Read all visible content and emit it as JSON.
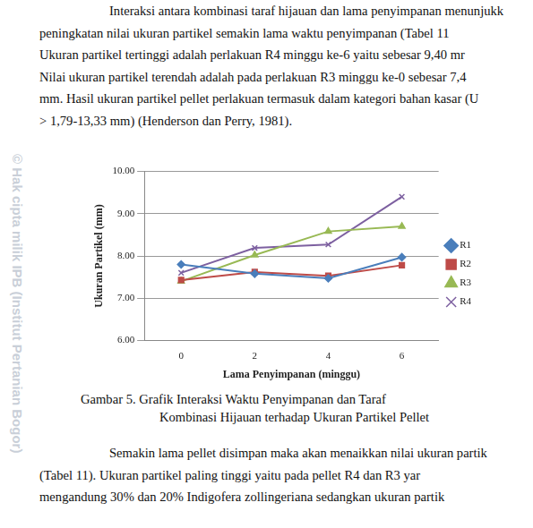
{
  "top_text": [
    "Interaksi antara kombinasi taraf hijauan dan lama penyimpanan menunjukk",
    "peningkatan nilai ukuran partikel semakin lama waktu penyimpanan (Tabel 11",
    "Ukuran partikel tertinggi adalah perlakuan R4 minggu ke-6 yaitu sebesar 9,40 mr",
    "Nilai ukuran partikel terendah adalah pada perlakuan R3 minggu ke-0 sebesar 7,4",
    "mm. Hasil ukuran partikel pellet perlakuan termasuk dalam kategori bahan kasar (U",
    "> 1,79-13,33 mm) (Henderson dan Perry, 1981)."
  ],
  "watermark": "© Hak cipta milik IPB (Institut Pertanian Bogor)",
  "caption": [
    "Gambar 5. Grafik Interaksi Waktu Penyimpanan dan Taraf",
    "Kombinasi Hijauan terhadap Ukuran Partikel Pellet"
  ],
  "bottom_text": [
    "Semakin lama pellet disimpan maka akan menaikkan nilai ukuran partik",
    "(Tabel 11). Ukuran partikel paling tinggi yaitu pada pellet R4 dan R3 yar",
    "mengandung 30% dan 20% Indigofera zollingeriana sedangkan ukuran partik"
  ],
  "chart_data": {
    "type": "line",
    "x_label": "Lama Penyimpanan (minggu)",
    "y_label": "Ukuran Partikel (mm)",
    "categories": [
      "0",
      "2",
      "4",
      "6"
    ],
    "series": [
      {
        "name": "R1",
        "color": "#4a7ebb",
        "marker": "diamond",
        "values": [
          7.8,
          7.58,
          7.47,
          7.97
        ]
      },
      {
        "name": "R2",
        "color": "#be4b48",
        "marker": "square",
        "values": [
          7.43,
          7.62,
          7.53,
          7.78
        ]
      },
      {
        "name": "R3",
        "color": "#98b954",
        "marker": "triangle",
        "values": [
          7.4,
          8.02,
          8.58,
          8.7
        ]
      },
      {
        "name": "R4",
        "color": "#7d60a0",
        "marker": "x",
        "values": [
          7.6,
          8.19,
          8.27,
          9.4
        ]
      }
    ],
    "ylim": [
      6,
      10
    ],
    "yticks": [
      {
        "value": 6,
        "label": "6.00"
      },
      {
        "value": 7,
        "label": "7.00"
      },
      {
        "value": 8,
        "label": "8.00"
      },
      {
        "value": 9,
        "label": "9.00"
      },
      {
        "value": 10,
        "label": "10.00"
      }
    ],
    "grid": true,
    "legend": "right"
  }
}
